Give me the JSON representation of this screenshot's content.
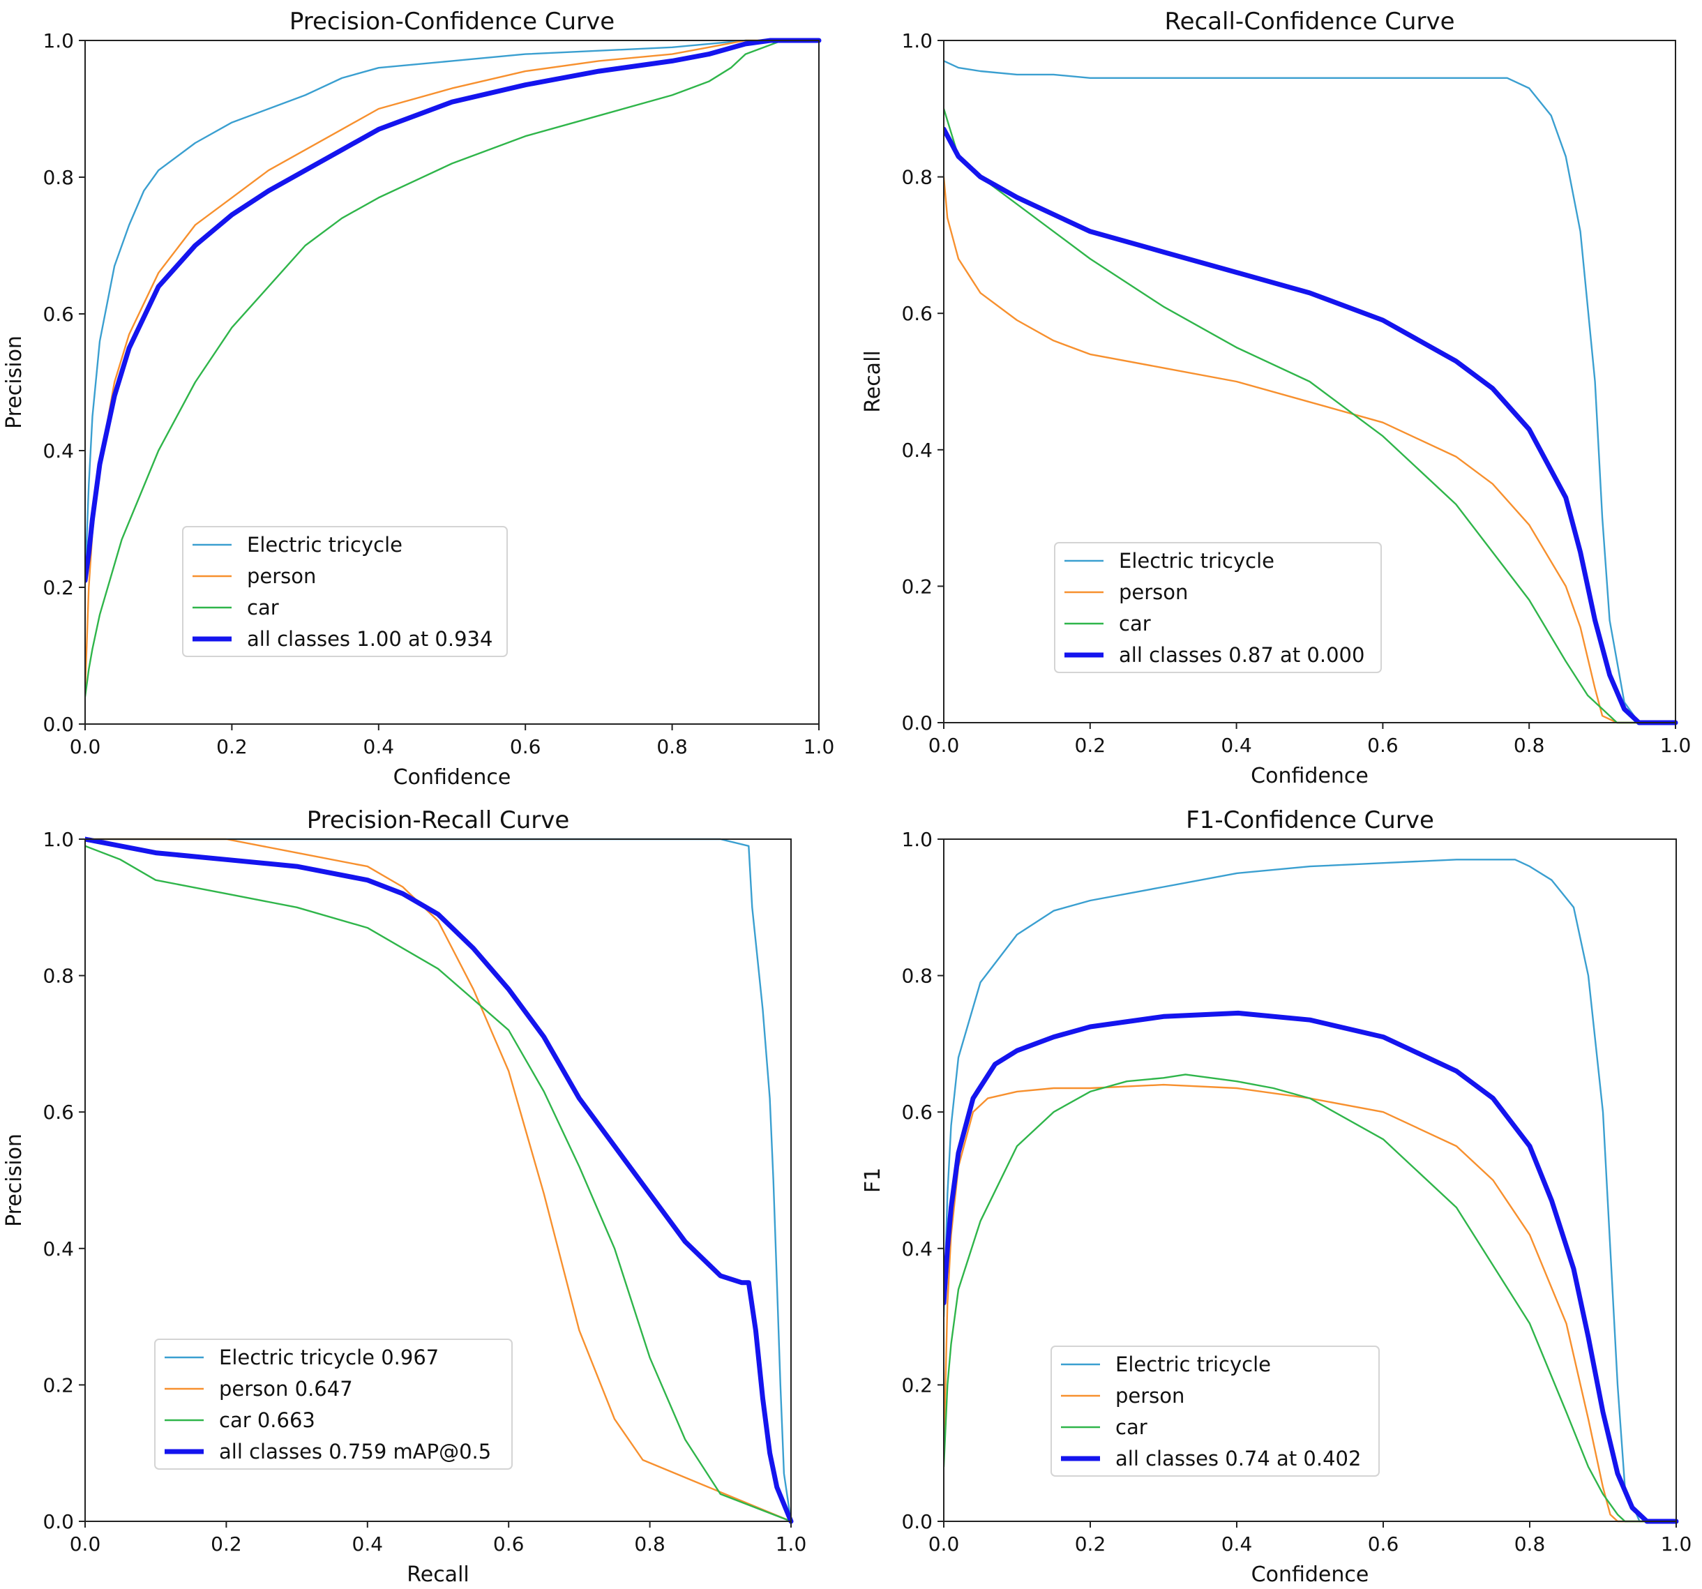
{
  "figure_title": "",
  "colors": {
    "electric_tricycle": "#3a9fd0",
    "person": "#f7902e",
    "car": "#2fb54a",
    "all_classes": "#1414ee",
    "axis": "#222222"
  },
  "chart_data": [
    {
      "id": "pc",
      "type": "line",
      "title": "Precision-Confidence Curve",
      "xlabel": "Confidence",
      "ylabel": "Precision",
      "xlim": [
        0,
        1
      ],
      "ylim": [
        0,
        1
      ],
      "xticks": [
        "0.0",
        "0.2",
        "0.4",
        "0.6",
        "0.8",
        "1.0"
      ],
      "yticks": [
        "0.0",
        "0.2",
        "0.4",
        "0.6",
        "0.8",
        "1.0"
      ],
      "legend_position": "lower-center",
      "series": [
        {
          "name": "Electric tricycle",
          "color_key": "electric_tricycle",
          "width": "thin",
          "x": [
            0,
            0.005,
            0.01,
            0.02,
            0.04,
            0.06,
            0.08,
            0.1,
            0.15,
            0.2,
            0.25,
            0.3,
            0.35,
            0.4,
            0.5,
            0.6,
            0.7,
            0.8,
            0.85,
            0.9,
            1.0
          ],
          "y": [
            0.21,
            0.35,
            0.45,
            0.56,
            0.67,
            0.73,
            0.78,
            0.81,
            0.85,
            0.88,
            0.9,
            0.92,
            0.945,
            0.96,
            0.97,
            0.98,
            0.985,
            0.99,
            0.995,
            1.0,
            1.0
          ]
        },
        {
          "name": "person",
          "color_key": "person",
          "width": "thin",
          "x": [
            0,
            0.005,
            0.01,
            0.02,
            0.04,
            0.06,
            0.1,
            0.15,
            0.2,
            0.25,
            0.3,
            0.35,
            0.4,
            0.5,
            0.6,
            0.7,
            0.8,
            0.85,
            0.9,
            1.0
          ],
          "y": [
            0.05,
            0.2,
            0.28,
            0.38,
            0.5,
            0.57,
            0.66,
            0.73,
            0.77,
            0.81,
            0.84,
            0.87,
            0.9,
            0.93,
            0.955,
            0.97,
            0.98,
            0.99,
            1.0,
            1.0
          ]
        },
        {
          "name": "car",
          "color_key": "car",
          "width": "thin",
          "x": [
            0,
            0.005,
            0.01,
            0.02,
            0.05,
            0.1,
            0.15,
            0.2,
            0.25,
            0.3,
            0.35,
            0.4,
            0.5,
            0.6,
            0.7,
            0.8,
            0.85,
            0.88,
            0.9,
            0.95,
            1.0
          ],
          "y": [
            0.04,
            0.08,
            0.11,
            0.16,
            0.27,
            0.4,
            0.5,
            0.58,
            0.64,
            0.7,
            0.74,
            0.77,
            0.82,
            0.86,
            0.89,
            0.92,
            0.94,
            0.96,
            0.98,
            1.0,
            1.0
          ]
        },
        {
          "name": "all classes 1.00 at 0.934",
          "color_key": "all_classes",
          "width": "thick",
          "x": [
            0,
            0.005,
            0.01,
            0.02,
            0.04,
            0.06,
            0.1,
            0.15,
            0.2,
            0.25,
            0.3,
            0.35,
            0.4,
            0.5,
            0.6,
            0.7,
            0.8,
            0.85,
            0.9,
            0.934,
            1.0
          ],
          "y": [
            0.21,
            0.25,
            0.3,
            0.38,
            0.48,
            0.55,
            0.64,
            0.7,
            0.745,
            0.78,
            0.81,
            0.84,
            0.87,
            0.91,
            0.935,
            0.955,
            0.97,
            0.98,
            0.995,
            1.0,
            1.0
          ]
        }
      ]
    },
    {
      "id": "rc",
      "type": "line",
      "title": "Recall-Confidence Curve",
      "xlabel": "Confidence",
      "ylabel": "Recall",
      "xlim": [
        0,
        1
      ],
      "ylim": [
        0,
        1
      ],
      "xticks": [
        "0.0",
        "0.2",
        "0.4",
        "0.6",
        "0.8",
        "1.0"
      ],
      "yticks": [
        "0.0",
        "0.2",
        "0.4",
        "0.6",
        "0.8",
        "1.0"
      ],
      "legend_position": "lower-center",
      "series": [
        {
          "name": "Electric tricycle",
          "color_key": "electric_tricycle",
          "width": "thin",
          "x": [
            0,
            0.02,
            0.05,
            0.1,
            0.15,
            0.2,
            0.5,
            0.77,
            0.8,
            0.83,
            0.85,
            0.87,
            0.89,
            0.9,
            0.91,
            0.93,
            0.95,
            1.0
          ],
          "y": [
            0.97,
            0.96,
            0.955,
            0.95,
            0.95,
            0.945,
            0.945,
            0.945,
            0.93,
            0.89,
            0.83,
            0.72,
            0.5,
            0.3,
            0.15,
            0.03,
            0.0,
            0.0
          ]
        },
        {
          "name": "person",
          "color_key": "person",
          "width": "thin",
          "x": [
            0,
            0.005,
            0.02,
            0.05,
            0.1,
            0.15,
            0.2,
            0.3,
            0.4,
            0.5,
            0.6,
            0.7,
            0.75,
            0.8,
            0.85,
            0.87,
            0.89,
            0.9,
            0.92,
            1.0
          ],
          "y": [
            0.8,
            0.74,
            0.68,
            0.63,
            0.59,
            0.56,
            0.54,
            0.52,
            0.5,
            0.47,
            0.44,
            0.39,
            0.35,
            0.29,
            0.2,
            0.14,
            0.05,
            0.01,
            0.0,
            0.0
          ]
        },
        {
          "name": "car",
          "color_key": "car",
          "width": "thin",
          "x": [
            0,
            0.02,
            0.05,
            0.1,
            0.15,
            0.2,
            0.3,
            0.4,
            0.5,
            0.6,
            0.7,
            0.75,
            0.8,
            0.85,
            0.88,
            0.9,
            0.92,
            0.93,
            1.0
          ],
          "y": [
            0.9,
            0.83,
            0.8,
            0.76,
            0.72,
            0.68,
            0.61,
            0.55,
            0.5,
            0.42,
            0.32,
            0.25,
            0.18,
            0.09,
            0.04,
            0.02,
            0.0,
            0.0,
            0.0
          ]
        },
        {
          "name": "all classes 0.87 at 0.000",
          "color_key": "all_classes",
          "width": "thick",
          "x": [
            0,
            0.02,
            0.05,
            0.1,
            0.2,
            0.3,
            0.4,
            0.5,
            0.6,
            0.7,
            0.75,
            0.8,
            0.85,
            0.87,
            0.89,
            0.91,
            0.93,
            0.95,
            1.0
          ],
          "y": [
            0.87,
            0.83,
            0.8,
            0.77,
            0.72,
            0.69,
            0.66,
            0.63,
            0.59,
            0.53,
            0.49,
            0.43,
            0.33,
            0.25,
            0.15,
            0.07,
            0.02,
            0.0,
            0.0
          ]
        }
      ]
    },
    {
      "id": "pr",
      "type": "line",
      "title": "Precision-Recall Curve",
      "xlabel": "Recall",
      "ylabel": "Precision",
      "xlim": [
        0,
        1
      ],
      "ylim": [
        0,
        1
      ],
      "xticks": [
        "0.0",
        "0.2",
        "0.4",
        "0.6",
        "0.8",
        "1.0"
      ],
      "yticks": [
        "0.0",
        "0.2",
        "0.4",
        "0.6",
        "0.8",
        "1.0"
      ],
      "legend_position": "lower-center",
      "series": [
        {
          "name": "Electric tricycle 0.967",
          "color_key": "electric_tricycle",
          "width": "thin",
          "x": [
            0,
            0.9,
            0.94,
            0.945,
            0.95,
            0.96,
            0.97,
            0.975,
            0.98,
            0.985,
            0.99,
            1.0
          ],
          "y": [
            1.0,
            1.0,
            0.99,
            0.9,
            0.85,
            0.75,
            0.62,
            0.5,
            0.35,
            0.2,
            0.07,
            0.0
          ]
        },
        {
          "name": "person 0.647",
          "color_key": "person",
          "width": "thin",
          "x": [
            0,
            0.2,
            0.3,
            0.4,
            0.45,
            0.5,
            0.55,
            0.6,
            0.65,
            0.7,
            0.75,
            0.79,
            1.0
          ],
          "y": [
            1.0,
            1.0,
            0.98,
            0.96,
            0.93,
            0.88,
            0.78,
            0.66,
            0.48,
            0.28,
            0.15,
            0.09,
            0.0
          ]
        },
        {
          "name": "car 0.663",
          "color_key": "car",
          "width": "thin",
          "x": [
            0,
            0.05,
            0.1,
            0.2,
            0.3,
            0.4,
            0.5,
            0.6,
            0.65,
            0.7,
            0.75,
            0.8,
            0.85,
            0.9,
            1.0
          ],
          "y": [
            0.99,
            0.97,
            0.94,
            0.92,
            0.9,
            0.87,
            0.81,
            0.72,
            0.63,
            0.52,
            0.4,
            0.24,
            0.12,
            0.04,
            0.0
          ]
        },
        {
          "name": "all classes 0.759 mAP@0.5",
          "color_key": "all_classes",
          "width": "thick",
          "x": [
            0,
            0.1,
            0.2,
            0.3,
            0.4,
            0.45,
            0.5,
            0.55,
            0.6,
            0.65,
            0.7,
            0.75,
            0.8,
            0.85,
            0.9,
            0.93,
            0.94,
            0.95,
            0.96,
            0.97,
            0.98,
            1.0
          ],
          "y": [
            1.0,
            0.98,
            0.97,
            0.96,
            0.94,
            0.92,
            0.89,
            0.84,
            0.78,
            0.71,
            0.62,
            0.55,
            0.48,
            0.41,
            0.36,
            0.35,
            0.35,
            0.28,
            0.18,
            0.1,
            0.05,
            0.0
          ]
        }
      ]
    },
    {
      "id": "f1",
      "type": "line",
      "title": "F1-Confidence Curve",
      "xlabel": "Confidence",
      "ylabel": "F1",
      "xlim": [
        0,
        1
      ],
      "ylim": [
        0,
        1
      ],
      "xticks": [
        "0.0",
        "0.2",
        "0.4",
        "0.6",
        "0.8",
        "1.0"
      ],
      "yticks": [
        "0.0",
        "0.2",
        "0.4",
        "0.6",
        "0.8",
        "1.0"
      ],
      "legend_position": "lower-center",
      "series": [
        {
          "name": "Electric tricycle",
          "color_key": "electric_tricycle",
          "width": "thin",
          "x": [
            0,
            0.005,
            0.01,
            0.02,
            0.05,
            0.1,
            0.15,
            0.2,
            0.3,
            0.4,
            0.5,
            0.6,
            0.7,
            0.78,
            0.8,
            0.83,
            0.86,
            0.88,
            0.9,
            0.91,
            0.92,
            0.93,
            0.95,
            1.0
          ],
          "y": [
            0.3,
            0.48,
            0.58,
            0.68,
            0.79,
            0.86,
            0.895,
            0.91,
            0.93,
            0.95,
            0.96,
            0.965,
            0.97,
            0.97,
            0.96,
            0.94,
            0.9,
            0.8,
            0.6,
            0.4,
            0.2,
            0.05,
            0.0,
            0.0
          ]
        },
        {
          "name": "person",
          "color_key": "person",
          "width": "thin",
          "x": [
            0,
            0.005,
            0.01,
            0.02,
            0.04,
            0.06,
            0.1,
            0.15,
            0.2,
            0.3,
            0.4,
            0.5,
            0.6,
            0.7,
            0.75,
            0.8,
            0.85,
            0.88,
            0.9,
            0.91,
            0.92,
            0.93,
            1.0
          ],
          "y": [
            0.1,
            0.32,
            0.42,
            0.52,
            0.6,
            0.62,
            0.63,
            0.635,
            0.635,
            0.64,
            0.635,
            0.62,
            0.6,
            0.55,
            0.5,
            0.42,
            0.29,
            0.15,
            0.05,
            0.01,
            0.0,
            0.0,
            0.0
          ]
        },
        {
          "name": "car",
          "color_key": "car",
          "width": "thin",
          "x": [
            0,
            0.005,
            0.01,
            0.02,
            0.05,
            0.1,
            0.15,
            0.2,
            0.25,
            0.3,
            0.33,
            0.4,
            0.45,
            0.5,
            0.6,
            0.7,
            0.8,
            0.85,
            0.88,
            0.9,
            0.92,
            0.93,
            1.0
          ],
          "y": [
            0.08,
            0.2,
            0.26,
            0.34,
            0.44,
            0.55,
            0.6,
            0.63,
            0.645,
            0.65,
            0.655,
            0.645,
            0.635,
            0.62,
            0.56,
            0.46,
            0.29,
            0.16,
            0.08,
            0.04,
            0.01,
            0.0,
            0.0
          ]
        },
        {
          "name": "all classes 0.74 at 0.402",
          "color_key": "all_classes",
          "width": "thick",
          "x": [
            0,
            0.005,
            0.01,
            0.02,
            0.04,
            0.07,
            0.1,
            0.15,
            0.2,
            0.3,
            0.402,
            0.5,
            0.6,
            0.7,
            0.75,
            0.8,
            0.83,
            0.86,
            0.88,
            0.9,
            0.92,
            0.94,
            0.96,
            1.0
          ],
          "y": [
            0.32,
            0.4,
            0.46,
            0.54,
            0.62,
            0.67,
            0.69,
            0.71,
            0.725,
            0.74,
            0.745,
            0.735,
            0.71,
            0.66,
            0.62,
            0.55,
            0.47,
            0.37,
            0.27,
            0.16,
            0.07,
            0.02,
            0.0,
            0.0
          ]
        }
      ]
    }
  ]
}
